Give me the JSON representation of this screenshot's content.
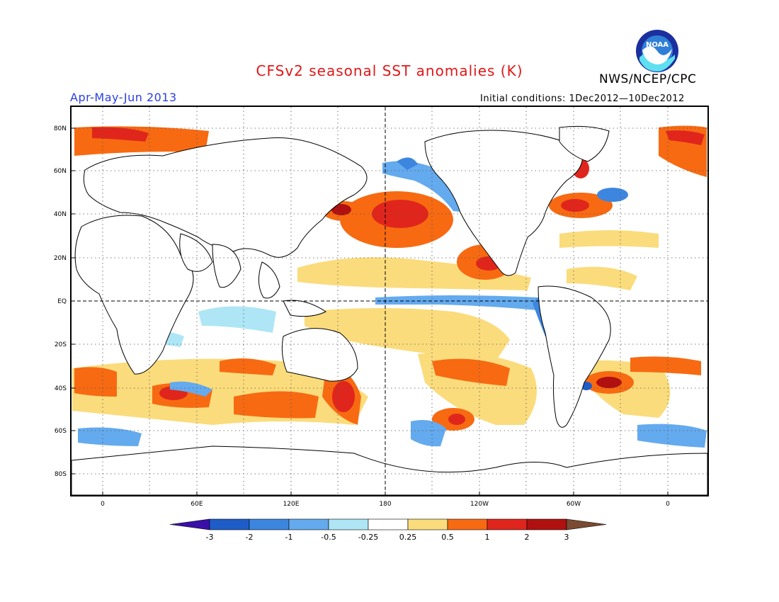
{
  "header": {
    "title": "CFSv2 seasonal SST anomalies (K)",
    "org": "NWS/NCEP/CPC",
    "season": "Apr-May-Jun 2013",
    "initial_conditions": "Initial conditions: 1Dec2012—10Dec2012",
    "logo_text": "NOAA"
  },
  "map": {
    "lat_labels": [
      "80N",
      "60N",
      "40N",
      "20N",
      "EQ",
      "20S",
      "40S",
      "60S",
      "80S"
    ],
    "lon_labels": [
      "0",
      "60E",
      "120E",
      "180",
      "120W",
      "60W",
      "0"
    ]
  },
  "colorbar": {
    "labels": [
      "-3",
      "-2",
      "-1",
      "-0.5",
      "-0.25",
      "0.25",
      "0.5",
      "1",
      "2",
      "3"
    ],
    "colors": [
      "#3a0fa8",
      "#1e5cc8",
      "#3d86e0",
      "#64aaee",
      "#aee6f6",
      "#ffffff",
      "#fbdc7c",
      "#f76a12",
      "#e0261c",
      "#b01010",
      "#7a4a32"
    ]
  },
  "chart_data": {
    "type": "heatmap",
    "title": "CFSv2 seasonal SST anomalies (K)",
    "subtitle": "Apr-May-Jun 2013",
    "units": "K",
    "x_axis": [
      "0",
      "60E",
      "120E",
      "180",
      "120W",
      "60W",
      "0"
    ],
    "y_axis": [
      "80N",
      "60N",
      "40N",
      "20N",
      "EQ",
      "20S",
      "40S",
      "60S",
      "80S"
    ],
    "legend_levels": [
      -3,
      -2,
      -1,
      -0.5,
      -0.25,
      0.25,
      0.5,
      1,
      2,
      3
    ],
    "grid": true
  }
}
